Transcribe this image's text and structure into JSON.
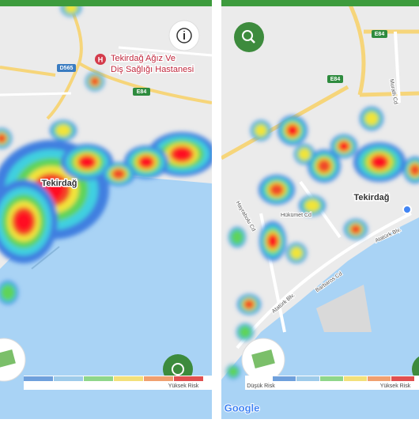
{
  "left_map": {
    "hospital_label_line1": "Tekirdağ Ağız Ve",
    "hospital_label_line2": "Diş Sağlığı Hastanesi",
    "place_label": "Tekirdağ",
    "road_labels": [
      "D565",
      "E84"
    ],
    "legend_high": "Yüksek Risk"
  },
  "right_map": {
    "place_label": "Tekirdağ",
    "road_labels": [
      "E84",
      "E84"
    ],
    "street_labels": [
      "Hükümet Cd",
      "Atatürk Blv.",
      "Atatürk Blv.",
      "Barbaros Cd",
      "Muratlı Cd",
      "Hayrabolu Cd"
    ],
    "legend_low": "Düşük Risk",
    "legend_high": "Yüksek Risk",
    "attribution": "Google"
  }
}
